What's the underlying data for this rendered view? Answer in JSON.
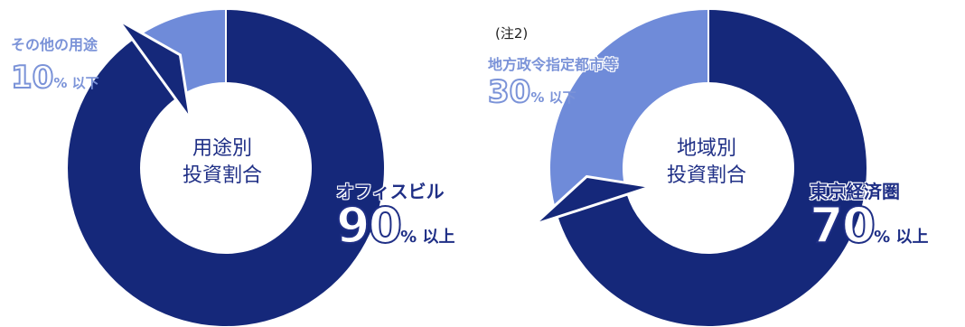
{
  "colors": {
    "primary": "#15287a",
    "secondary": "#6f8bd9",
    "text_dark": "#1f2f86",
    "text_light": "#7b93d8"
  },
  "chart_data": [
    {
      "type": "pie",
      "center_label": [
        "用途別",
        "投資割合"
      ],
      "slices": [
        {
          "name": "オフィスビル",
          "value": 90,
          "display_value": "90",
          "unit": "% 以上"
        },
        {
          "name": "その他の用途",
          "value": 10,
          "display_value": "10",
          "unit": "% 以下"
        }
      ]
    },
    {
      "type": "pie",
      "center_label": [
        "地域別",
        "投資割合"
      ],
      "note": "(注2)",
      "slices": [
        {
          "name": "東京経済圏",
          "value": 70,
          "display_value": "70",
          "unit": "% 以上"
        },
        {
          "name": "地方政令指定都市等",
          "value": 30,
          "display_value": "30",
          "unit": "% 以下"
        }
      ]
    }
  ]
}
